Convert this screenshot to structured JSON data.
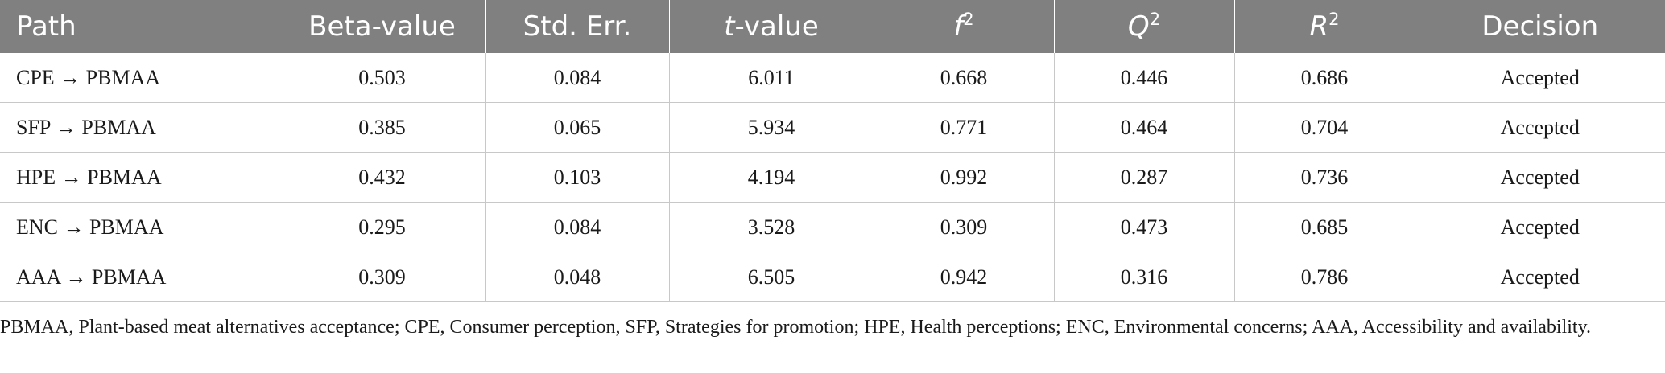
{
  "table": {
    "headers": {
      "path": "Path",
      "beta": "Beta-value",
      "stderr": "Std. Err.",
      "t_italic": "t",
      "t_rest": "-value",
      "f_base": "f",
      "f_sup": "2",
      "q_base": "Q",
      "q_sup": "2",
      "r_base": "R",
      "r_sup": "2",
      "decision": "Decision"
    },
    "rows": [
      {
        "path": "CPE → PBMAA",
        "beta": "0.503",
        "stderr": "0.084",
        "t": "6.011",
        "f2": "0.668",
        "q2": "0.446",
        "r2": "0.686",
        "decision": "Accepted"
      },
      {
        "path": "SFP → PBMAA",
        "beta": "0.385",
        "stderr": "0.065",
        "t": "5.934",
        "f2": "0.771",
        "q2": "0.464",
        "r2": "0.704",
        "decision": "Accepted"
      },
      {
        "path": "HPE → PBMAA",
        "beta": "0.432",
        "stderr": "0.103",
        "t": "4.194",
        "f2": "0.992",
        "q2": "0.287",
        "r2": "0.736",
        "decision": "Accepted"
      },
      {
        "path": "ENC → PBMAA",
        "beta": "0.295",
        "stderr": "0.084",
        "t": "3.528",
        "f2": "0.309",
        "q2": "0.473",
        "r2": "0.685",
        "decision": "Accepted"
      },
      {
        "path": "AAA → PBMAA",
        "beta": "0.309",
        "stderr": "0.048",
        "t": "6.505",
        "f2": "0.942",
        "q2": "0.316",
        "r2": "0.786",
        "decision": "Accepted"
      }
    ]
  },
  "footnote": "PBMAA, Plant-based meat alternatives acceptance; CPE, Consumer perception, SFP, Strategies for promotion; HPE, Health perceptions; ENC, Environmental concerns; AAA, Accessibility and availability."
}
